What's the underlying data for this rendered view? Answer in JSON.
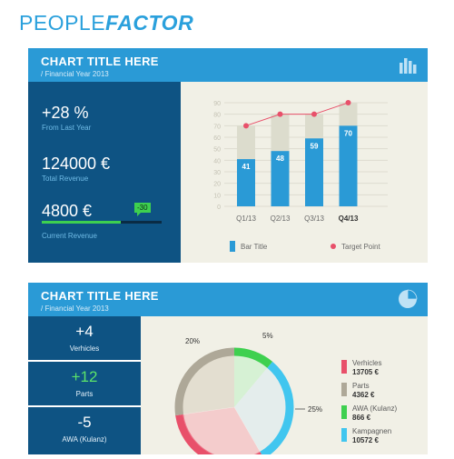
{
  "logo": {
    "part1": "PEOPLE",
    "part2": "FACTOR"
  },
  "card1": {
    "title": "CHART TITLE HERE",
    "subtitle": "/ Financial Year 2013",
    "stats": [
      {
        "value": "+28 %",
        "label": "From Last Year"
      },
      {
        "value": "124000 €",
        "label": "Total Revenue"
      },
      {
        "value": "4800 €",
        "label": "Current Revenue"
      }
    ],
    "current_revenue_progress": 0.66,
    "badge": "-30"
  },
  "card2": {
    "title": "CHART TITLE HERE",
    "subtitle": "/ Financial Year 2013",
    "tiles": [
      {
        "value": "+4",
        "label": "Verhicles"
      },
      {
        "value": "+12",
        "label": "Parts"
      },
      {
        "value": "-5",
        "label": "AWA (Kulanz)"
      }
    ]
  },
  "colors": {
    "header": "#2a9ad6",
    "panel_dark": "#0e5383",
    "bar": "#2a9ad6",
    "bar_bg": "#dcdccd",
    "target": "#e8506a",
    "green": "#3ed04f",
    "red": "#e8506a",
    "taupe": "#aea898",
    "cyan": "#41c6ef"
  },
  "chart_data": [
    {
      "type": "bar",
      "categories": [
        "Q1/13",
        "Q2/13",
        "Q3/13",
        "Q4/13"
      ],
      "values": [
        41,
        48,
        59,
        70
      ],
      "target": [
        70,
        80,
        80,
        90
      ],
      "ylim": [
        0,
        90
      ],
      "yticks": [
        0,
        10,
        20,
        30,
        40,
        50,
        60,
        70,
        80,
        90
      ],
      "legend": [
        {
          "label": "Bar Title",
          "color": "#2a9ad6",
          "shape": "bar"
        },
        {
          "label": "Target Point",
          "color": "#e8506a",
          "shape": "dot"
        }
      ],
      "grid": true
    },
    {
      "type": "pie",
      "slices": [
        {
          "name": "Verhicles",
          "value": "13705 €",
          "color": "#e8506a"
        },
        {
          "name": "Parts",
          "value": "4362 €",
          "color": "#aea898"
        },
        {
          "name": "AWA (Kulanz)",
          "value": "866 €",
          "color": "#3ed04f"
        },
        {
          "name": "Kampagnen",
          "value": "10572 €",
          "color": "#41c6ef"
        }
      ],
      "percent_labels": [
        "20%",
        "5%",
        "25%"
      ]
    }
  ]
}
